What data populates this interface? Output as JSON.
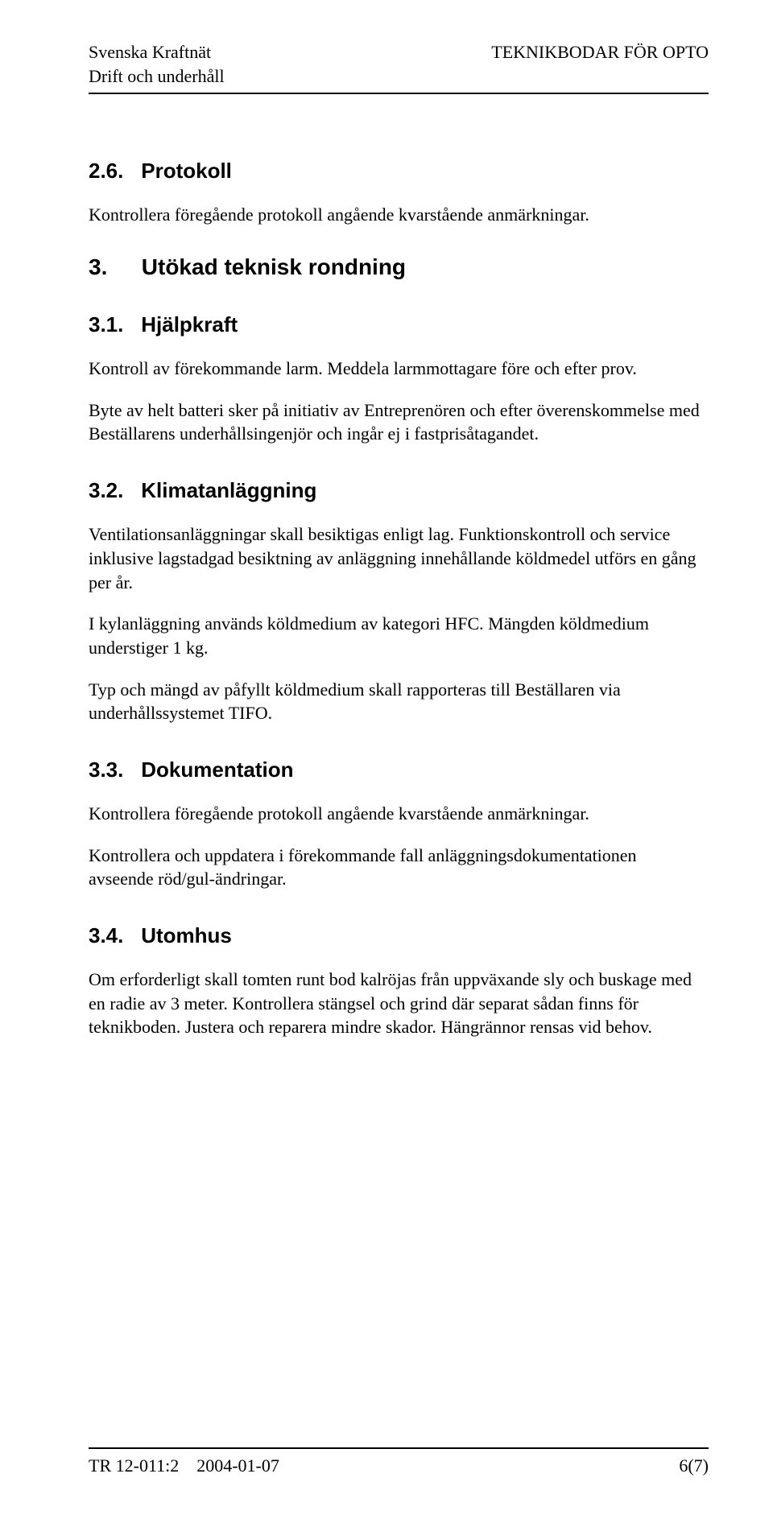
{
  "header": {
    "org": "Svenska Kraftnät",
    "dept": "Drift och underhåll",
    "doc_title": "TEKNIKBODAR FÖR OPTO"
  },
  "sections": {
    "s26": {
      "num": "2.6.",
      "title": "Protokoll"
    },
    "p26_1": "Kontrollera föregående protokoll angående kvarstående anmärkningar.",
    "s3": {
      "num": "3.",
      "title": "Utökad teknisk rondning"
    },
    "s31": {
      "num": "3.1.",
      "title": "Hjälpkraft"
    },
    "p31_1": "Kontroll av förekommande larm. Meddela larmmottagare före och efter prov.",
    "p31_2": "Byte av helt batteri sker på initiativ av Entreprenören och efter överenskommelse med Beställarens underhållsingenjör och ingår ej i fastprisåtagandet.",
    "s32": {
      "num": "3.2.",
      "title": "Klimatanläggning"
    },
    "p32_1": "Ventilationsanläggningar skall besiktigas enligt lag. Funktions­kontroll och service inklusive lagstadgad besiktning av anläggning innehållande köldmedel utförs en gång per år.",
    "p32_2": "I kylanläggning används köldmedium av kategori HFC. Mängden köldmedium understiger 1 kg.",
    "p32_3": "Typ och mängd av påfyllt köldmedium skall rapporteras till Beställaren via underhållssystemet TIFO.",
    "s33": {
      "num": "3.3.",
      "title": "Dokumentation"
    },
    "p33_1": "Kontrollera föregående protokoll angående kvarstående anmärkningar.",
    "p33_2": "Kontrollera och uppdatera i förekommande fall anläggningsdokumentationen avseende röd/gul-ändringar.",
    "s34": {
      "num": "3.4.",
      "title": "Utomhus"
    },
    "p34_1": "Om erforderligt skall tomten runt bod kalröjas från uppväxande sly och buskage med en radie av 3 meter. Kontrollera stängsel och grind där separat sådan finns för teknikboden. Justera och reparera mindre skador. Hängrännor rensas vid behov."
  },
  "footer": {
    "doc_id": "TR 12-011:2",
    "date": "2004-01-07",
    "page": "6(7)"
  }
}
